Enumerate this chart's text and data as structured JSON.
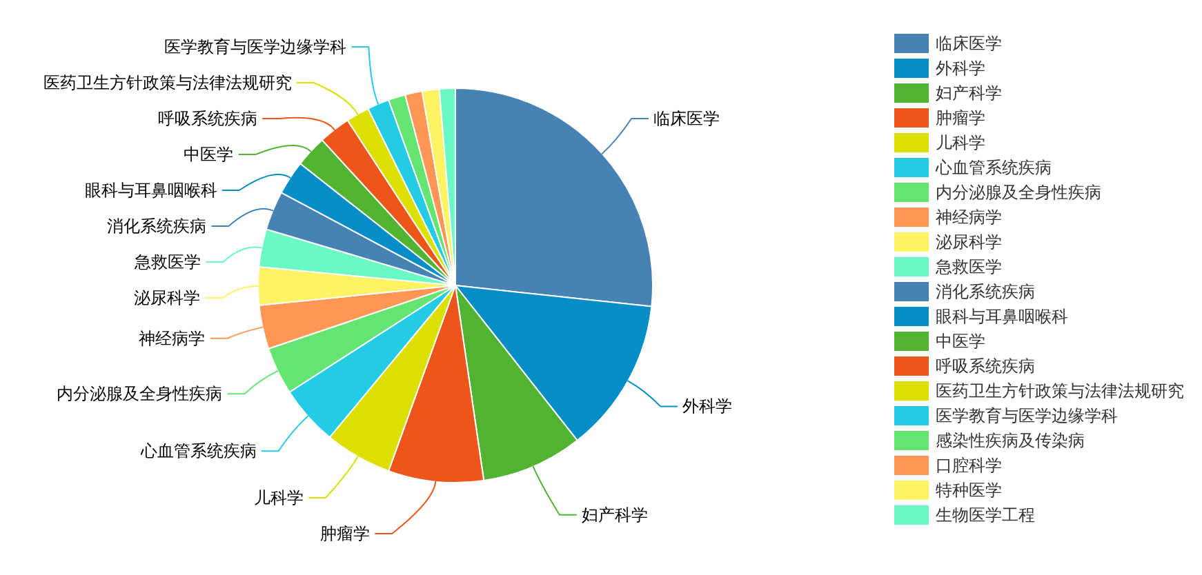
{
  "chart_data": {
    "type": "pie",
    "categories": [
      "临床医学",
      "外科学",
      "妇产科学",
      "肿瘤学",
      "儿科学",
      "心血管系统疾病",
      "内分泌腺及全身性疾病",
      "神经病学",
      "泌尿科学",
      "急救医学",
      "消化系统疾病",
      "眼科与耳鼻咽喉科",
      "中医学",
      "呼吸系统疾病",
      "医药卫生方针政策与法律法规研究",
      "医学教育与医学边缘学科",
      "感染性疾病及传染病",
      "口腔科学",
      "特种医学",
      "生物医学工程"
    ],
    "values": [
      26.7,
      12.7,
      8.3,
      7.8,
      5.5,
      4.9,
      3.9,
      3.6,
      3.1,
      3.1,
      3.2,
      2.8,
      2.6,
      2.6,
      1.9,
      1.8,
      1.4,
      1.4,
      1.4,
      1.3
    ],
    "colors": [
      "#4682b4",
      "#058dc7",
      "#50b432",
      "#ed561b",
      "#dddf00",
      "#24cbe5",
      "#64e572",
      "#ff9655",
      "#fff263",
      "#6af9c4",
      "#4682b4",
      "#058dc7",
      "#50b432",
      "#ed561b",
      "#dddf00",
      "#24cbe5",
      "#64e572",
      "#ff9655",
      "#fff263",
      "#6af9c4"
    ],
    "legend": "right"
  }
}
